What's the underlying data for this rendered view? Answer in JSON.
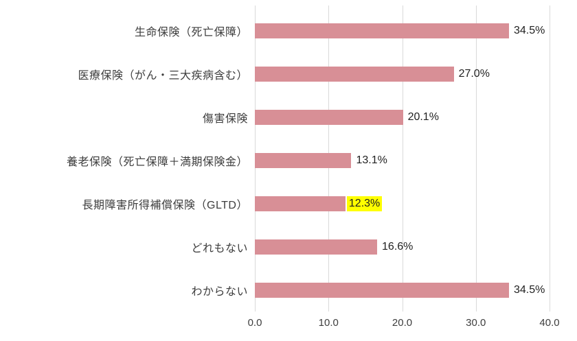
{
  "chart_data": {
    "type": "bar",
    "orientation": "horizontal",
    "title": "",
    "xlabel": "",
    "ylabel": "",
    "categories": [
      "生命保険（死亡保障）",
      "医療保険（がん・三大疾病含む）",
      "傷害保険",
      "養老保険（死亡保障＋満期保険金）",
      "長期障害所得補償保険（GLTD）",
      "どれもない",
      "わからない"
    ],
    "values": [
      34.5,
      27.0,
      20.1,
      13.1,
      12.3,
      16.6,
      34.5
    ],
    "value_labels": [
      "34.5%",
      "27.0%",
      "20.1%",
      "13.1%",
      "12.3%",
      "16.6%",
      "34.5%"
    ],
    "highlighted_index": 4,
    "highlight_color": "#ffff00",
    "bar_color": "#d88f96",
    "grid_color": "#d9d9d9",
    "xlim": [
      0,
      40
    ],
    "x_ticks": [
      0,
      10,
      20,
      30,
      40
    ],
    "x_tick_labels": [
      "0.0",
      "10.0",
      "20.0",
      "30.0",
      "40.0"
    ],
    "grid": true,
    "legend": false
  }
}
